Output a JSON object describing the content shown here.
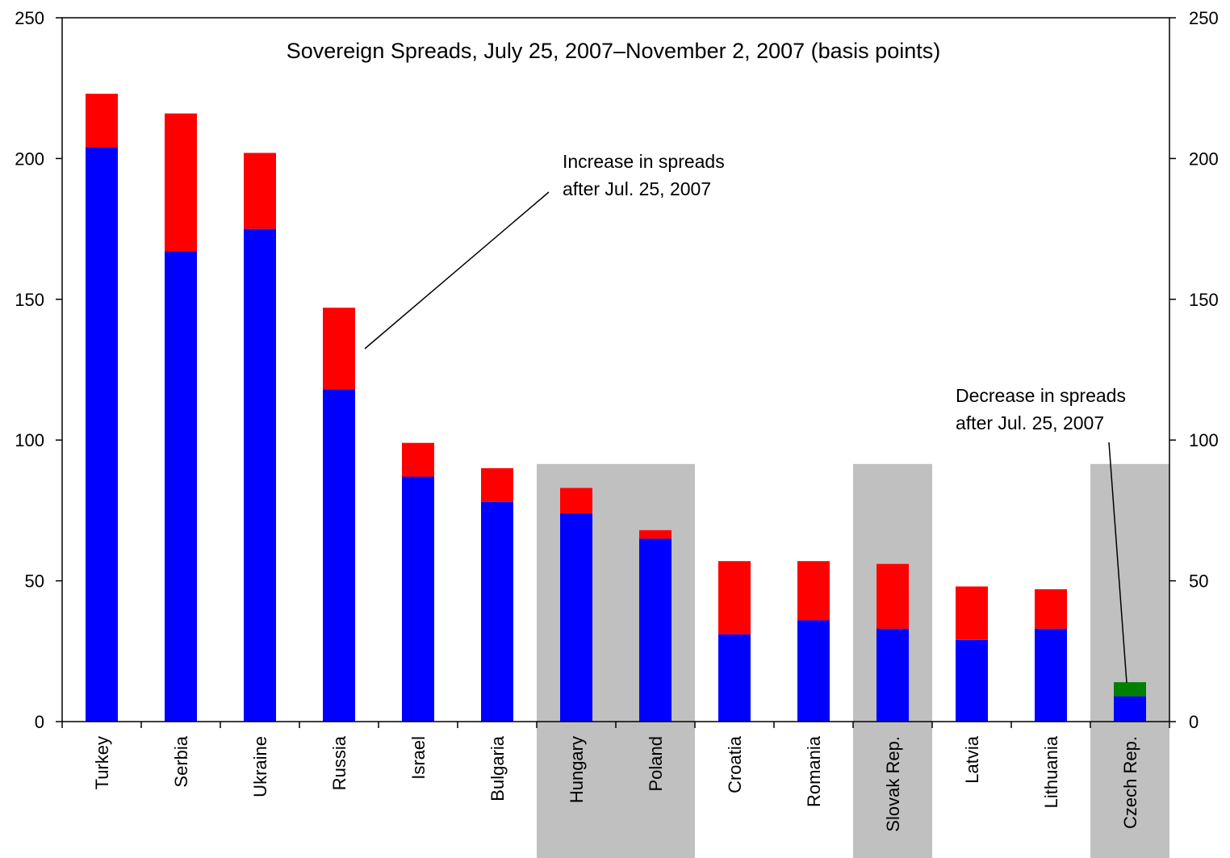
{
  "chart_data": {
    "type": "bar",
    "title": "Sovereign Spreads, July 25, 2007–November 2, 2007 (basis points)",
    "xlabel": "",
    "ylabel": "",
    "ylim": [
      0,
      250
    ],
    "yticks": [
      0,
      50,
      100,
      150,
      200,
      250
    ],
    "grid": false,
    "categories": [
      "Turkey",
      "Serbia",
      "Ukraine",
      "Russia",
      "Israel",
      "Bulgaria",
      "Hungary",
      "Poland",
      "Croatia",
      "Romania",
      "Slovak Rep.",
      "Latvia",
      "Lithuania",
      "Czech Rep."
    ],
    "highlighted_categories": [
      "Hungary",
      "Poland",
      "Slovak Rep.",
      "Czech Rep."
    ],
    "series": [
      {
        "values": [
          204,
          167,
          175,
          118,
          87,
          78,
          74,
          65,
          31,
          36,
          33,
          29,
          33,
          9
        ]
      },
      {
        "values": [
          19,
          49,
          27,
          29,
          12,
          12,
          9,
          3,
          26,
          21,
          23,
          19,
          14,
          0
        ]
      },
      {
        "values": [
          0,
          0,
          0,
          0,
          0,
          0,
          0,
          0,
          0,
          0,
          0,
          0,
          0,
          5
        ]
      }
    ],
    "colors": {
      "base": "#0000ff",
      "increase": "#ff0000",
      "decrease": "#008000",
      "highlight": "#c0c0c0"
    },
    "annotations": [
      {
        "lines": [
          "Increase in spreads",
          "after Jul. 25, 2007"
        ],
        "points_to": "Russia"
      },
      {
        "lines": [
          "Decrease in spreads",
          "after Jul. 25, 2007"
        ],
        "points_to": "Czech Rep."
      }
    ]
  }
}
